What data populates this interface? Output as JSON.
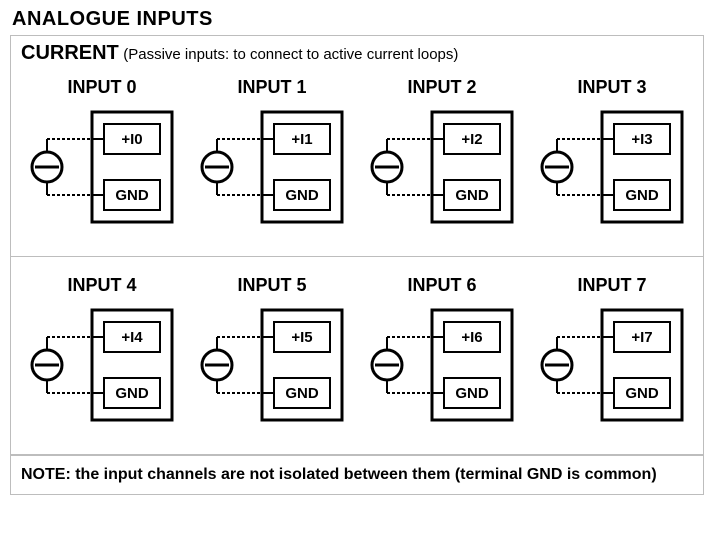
{
  "page_title": "ANALOGUE INPUTS",
  "header": {
    "main": "CURRENT",
    "sub": "(Passive inputs: to connect to active current loops)"
  },
  "inputs": [
    {
      "label": "INPUT 0",
      "signal": "+I0",
      "ground": "GND"
    },
    {
      "label": "INPUT 1",
      "signal": "+I1",
      "ground": "GND"
    },
    {
      "label": "INPUT 2",
      "signal": "+I2",
      "ground": "GND"
    },
    {
      "label": "INPUT 3",
      "signal": "+I3",
      "ground": "GND"
    },
    {
      "label": "INPUT 4",
      "signal": "+I4",
      "ground": "GND"
    },
    {
      "label": "INPUT 5",
      "signal": "+I5",
      "ground": "GND"
    },
    {
      "label": "INPUT 6",
      "signal": "+I6",
      "ground": "GND"
    },
    {
      "label": "INPUT 7",
      "signal": "+I7",
      "ground": "GND"
    }
  ],
  "note": "NOTE: the input channels are not isolated between them (terminal GND is common)",
  "diagram_style": {
    "type": "current-loop-input",
    "stroke": "#000000",
    "stroke_width_heavy": 3,
    "stroke_width_light": 2,
    "dash_pattern": "3,2",
    "box_border_color": "#000000",
    "terminal_border_color": "#000000",
    "label_font": "Arial",
    "label_weight": "bold",
    "label_size_signal": 15,
    "label_size_ground": 15,
    "plus_symbol": "+",
    "source_radius": 15
  }
}
